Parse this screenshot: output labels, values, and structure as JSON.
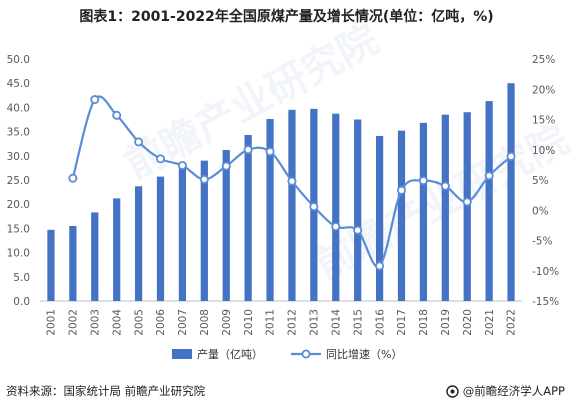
{
  "title": "图表1：2001-2022年全国原煤产量及增长情况(单位：亿吨，%)",
  "watermark": "前瞻产业研究院",
  "footer": {
    "source": "资料来源：国家统计局 前瞻产业研究院",
    "brand": "@前瞻经济学人APP"
  },
  "colors": {
    "bar": "#4472C4",
    "line": "#5B8DD6",
    "text": "#595959",
    "grid": "#e0e0e0"
  },
  "chart_data": {
    "type": "bar",
    "categories": [
      "2001",
      "2002",
      "2003",
      "2004",
      "2005",
      "2006",
      "2007",
      "2008",
      "2009",
      "2010",
      "2011",
      "2012",
      "2013",
      "2014",
      "2015",
      "2016",
      "2017",
      "2018",
      "2019",
      "2020",
      "2021",
      "2022"
    ],
    "y_left": {
      "lim": [
        0,
        50
      ],
      "step": 5,
      "tick_labels": [
        "0.0",
        "5.0",
        "10.0",
        "15.0",
        "20.0",
        "25.0",
        "30.0",
        "35.0",
        "40.0",
        "45.0",
        "50.0"
      ]
    },
    "y_right": {
      "lim": [
        -15,
        25
      ],
      "step": 5,
      "tick_labels": [
        "-15%",
        "-10%",
        "-5%",
        "0%",
        "5%",
        "10%",
        "15%",
        "20%",
        "25%"
      ]
    },
    "legend": {
      "position": "bottom"
    },
    "series": [
      {
        "name": "产量（亿吨）",
        "type": "bar",
        "axis": "left",
        "values": [
          14.7,
          15.5,
          18.3,
          21.2,
          23.7,
          25.7,
          27.6,
          29.0,
          31.2,
          34.3,
          37.6,
          39.5,
          39.7,
          38.7,
          37.5,
          34.1,
          35.2,
          36.8,
          38.5,
          39.0,
          41.3,
          45.0
        ]
      },
      {
        "name": "同比增速（%）",
        "type": "line",
        "axis": "right",
        "values": [
          null,
          5.3,
          18.3,
          15.7,
          11.3,
          8.5,
          7.4,
          5.1,
          7.3,
          10.0,
          9.7,
          4.8,
          0.6,
          -2.7,
          -3.3,
          -9.2,
          3.3,
          4.9,
          4.0,
          1.4,
          5.7,
          8.9
        ]
      }
    ]
  }
}
